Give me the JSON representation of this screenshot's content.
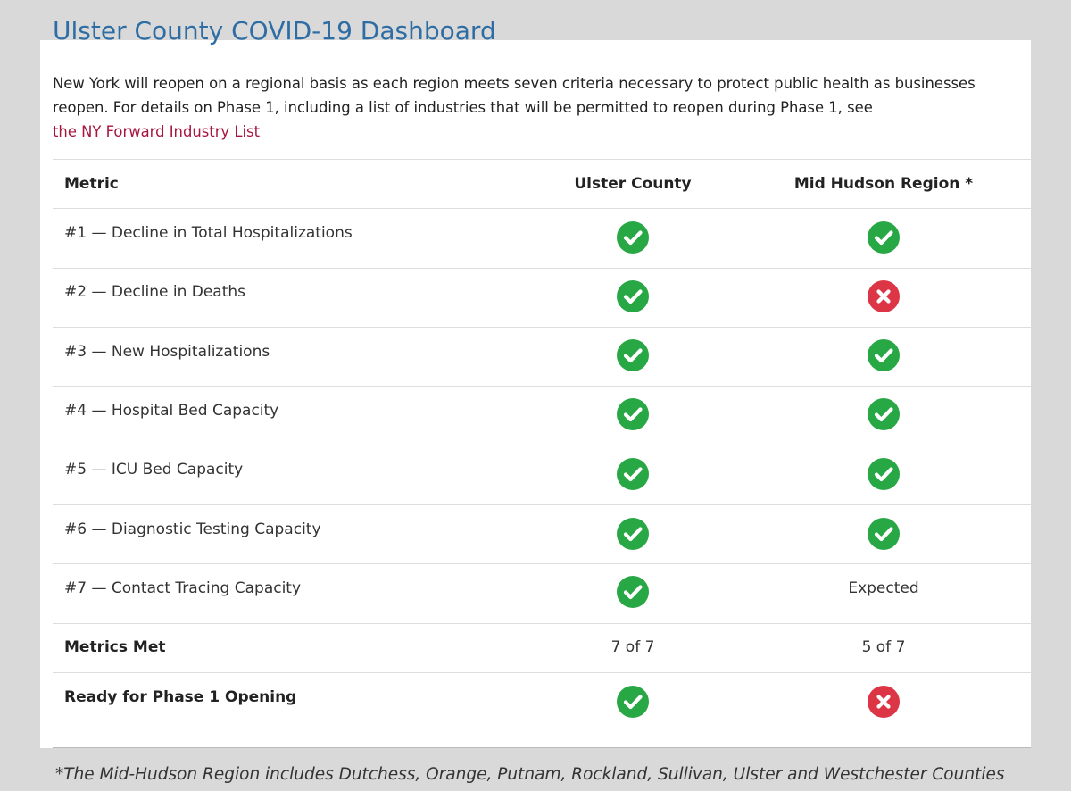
{
  "header": {
    "title": "Ulster County COVID-19 Dashboard"
  },
  "intro": {
    "text": "New York will reopen on a regional basis as each region meets seven criteria necessary to protect public health as businesses reopen. For details on Phase 1, including a list of industries that will be permitted to reopen during Phase 1, see",
    "link": "the NY Forward Industry List"
  },
  "table": {
    "headers": [
      "Metric",
      "Ulster County",
      "Mid Hudson Region *"
    ],
    "rows": [
      {
        "metric": "#1 — Decline in Total Hospitalizations"
      },
      {
        "metric": "#2 — Decline in Deaths"
      },
      {
        "metric": "#3 — New Hospitalizations"
      },
      {
        "metric": "#4 — Hospital Bed Capacity"
      },
      {
        "metric": "#5 — ICU Bed Capacity"
      },
      {
        "metric": "#6 — Diagnostic Testing Capacity"
      },
      {
        "metric": "#7 — Contact Tracing Capacity",
        "mid_hudson": "Expected"
      },
      {
        "metric": "Metrics Met",
        "ulster": "7 of 7",
        "mid_hudson": "5 of 7"
      },
      {
        "metric": "Ready for Phase 1 Opening"
      }
    ]
  },
  "footnote": "*The Mid-Hudson Region includes Dutchess, Orange, Putnam, Rockland, Sullivan, Ulster and Westchester Counties"
}
